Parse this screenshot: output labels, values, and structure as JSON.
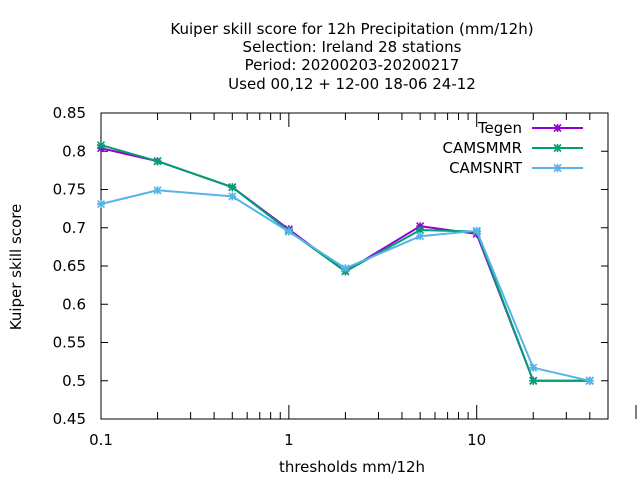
{
  "chart_data": {
    "type": "line",
    "title_lines": [
      "Kuiper skill score  for 12h Precipitation (mm/12h)",
      "Selection: Ireland      28 stations",
      "Period: 20200203-20200217",
      "Used  00,12  + 12-00 18-06 24-12"
    ],
    "xlabel": "thresholds mm/12h",
    "ylabel": "Kuiper skill score",
    "x_scale": "log",
    "xlim": [
      0.1,
      50
    ],
    "ylim": [
      0.45,
      0.85
    ],
    "x_ticks": [
      0.1,
      1,
      10
    ],
    "x_tick_labels": [
      "0.1",
      "1",
      "10"
    ],
    "y_ticks": [
      0.45,
      0.5,
      0.55,
      0.6,
      0.65,
      0.7,
      0.75,
      0.8,
      0.85
    ],
    "y_tick_labels": [
      "0.45",
      "0.5",
      "0.55",
      "0.6",
      "0.65",
      "0.7",
      "0.75",
      "0.8",
      "0.85"
    ],
    "grid": false,
    "legend_position": "top-right",
    "series": [
      {
        "name": "Tegen",
        "color": "#9400d3",
        "x": [
          0.1,
          0.2,
          0.5,
          1,
          2,
          5,
          10,
          20,
          40
        ],
        "values": [
          0.804,
          0.787,
          0.753,
          0.698,
          0.643,
          0.702,
          0.692,
          0.5,
          0.5
        ]
      },
      {
        "name": "CAMSMMR",
        "color": "#009e73",
        "x": [
          0.1,
          0.2,
          0.5,
          1,
          2,
          5,
          10,
          20,
          40
        ],
        "values": [
          0.808,
          0.787,
          0.753,
          0.696,
          0.643,
          0.697,
          0.695,
          0.5,
          0.5
        ]
      },
      {
        "name": "CAMSNRT",
        "color": "#56b4e9",
        "x": [
          0.1,
          0.2,
          0.5,
          1,
          2,
          5,
          10,
          20,
          40
        ],
        "values": [
          0.731,
          0.749,
          0.741,
          0.695,
          0.647,
          0.689,
          0.696,
          0.517,
          0.5
        ]
      }
    ]
  }
}
